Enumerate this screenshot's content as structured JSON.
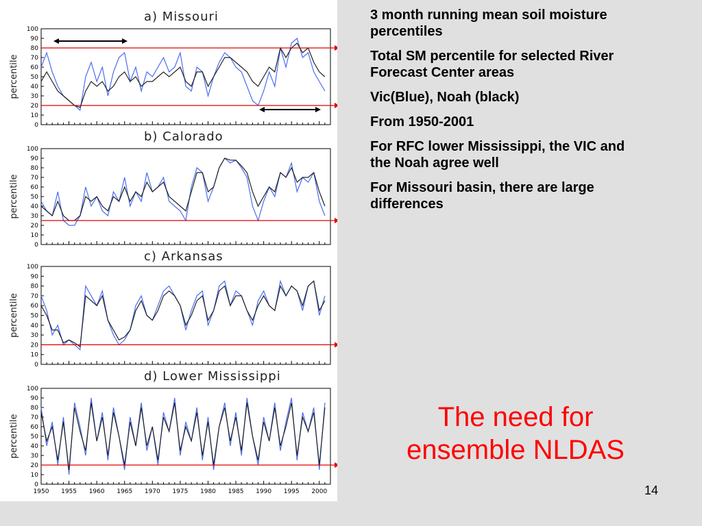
{
  "notes": [
    "3 month running mean soil moisture percentiles",
    "Total SM percentile for selected River Forecast Center areas",
    "Vic(Blue), Noah (black)",
    "From 1950-2001",
    "For RFC lower Mississippi, the VIC and the Noah agree well",
    "For Missouri basin, there are large differences"
  ],
  "slogan": "The need for ensemble NLDAS",
  "slide_number": "14",
  "colors": {
    "vic": "#4a6cf0",
    "noah": "#222222",
    "threshold": "#e00000",
    "title_red": "#ff0000"
  },
  "chart_data": [
    {
      "type": "line",
      "title": "a) Missouri",
      "ylabel": "percentile",
      "ylim": [
        0,
        100
      ],
      "xlim": [
        1950,
        2002
      ],
      "yticks": [
        "0",
        "10",
        "20",
        "30",
        "40",
        "50",
        "60",
        "70",
        "80",
        "90",
        "100"
      ],
      "threshold_lines": [
        80,
        20
      ],
      "series": [
        {
          "name": "Vic",
          "x": [
            1950,
            1951,
            1952,
            1953,
            1954,
            1955,
            1956,
            1957,
            1958,
            1959,
            1960,
            1961,
            1962,
            1963,
            1964,
            1965,
            1966,
            1967,
            1968,
            1969,
            1970,
            1971,
            1972,
            1973,
            1974,
            1975,
            1976,
            1977,
            1978,
            1979,
            1980,
            1981,
            1982,
            1983,
            1984,
            1985,
            1986,
            1987,
            1988,
            1989,
            1990,
            1991,
            1992,
            1993,
            1994,
            1995,
            1996,
            1997,
            1998,
            1999,
            2000,
            2001
          ],
          "values": [
            60,
            75,
            55,
            40,
            30,
            25,
            20,
            15,
            50,
            65,
            45,
            60,
            30,
            55,
            70,
            75,
            45,
            60,
            35,
            55,
            50,
            60,
            70,
            55,
            60,
            75,
            40,
            35,
            60,
            55,
            30,
            50,
            65,
            75,
            70,
            60,
            55,
            40,
            25,
            20,
            35,
            55,
            40,
            80,
            60,
            85,
            90,
            70,
            75,
            55,
            45,
            35
          ]
        },
        {
          "name": "Noah",
          "x": [
            1950,
            1951,
            1952,
            1953,
            1954,
            1955,
            1956,
            1957,
            1958,
            1959,
            1960,
            1961,
            1962,
            1963,
            1964,
            1965,
            1966,
            1967,
            1968,
            1969,
            1970,
            1971,
            1972,
            1973,
            1974,
            1975,
            1976,
            1977,
            1978,
            1979,
            1980,
            1981,
            1982,
            1983,
            1984,
            1985,
            1986,
            1987,
            1988,
            1989,
            1990,
            1991,
            1992,
            1993,
            1994,
            1995,
            1996,
            1997,
            1998,
            1999,
            2000,
            2001
          ],
          "values": [
            45,
            55,
            45,
            35,
            30,
            25,
            20,
            18,
            35,
            45,
            40,
            45,
            35,
            40,
            50,
            55,
            45,
            50,
            40,
            45,
            45,
            50,
            55,
            50,
            55,
            60,
            45,
            40,
            55,
            55,
            40,
            50,
            60,
            70,
            70,
            65,
            60,
            55,
            45,
            40,
            50,
            60,
            55,
            80,
            70,
            80,
            85,
            75,
            80,
            65,
            55,
            50
          ]
        }
      ]
    },
    {
      "type": "line",
      "title": "b) Calorado",
      "ylabel": "percentile",
      "ylim": [
        0,
        100
      ],
      "xlim": [
        1950,
        2002
      ],
      "yticks": [
        "0",
        "10",
        "20",
        "30",
        "40",
        "50",
        "60",
        "70",
        "80",
        "90",
        "100"
      ],
      "threshold_lines": [
        25
      ],
      "series": [
        {
          "name": "Vic",
          "x": [
            1950,
            1951,
            1952,
            1953,
            1954,
            1955,
            1956,
            1957,
            1958,
            1959,
            1960,
            1961,
            1962,
            1963,
            1964,
            1965,
            1966,
            1967,
            1968,
            1969,
            1970,
            1971,
            1972,
            1973,
            1974,
            1975,
            1976,
            1977,
            1978,
            1979,
            1980,
            1981,
            1982,
            1983,
            1984,
            1985,
            1986,
            1987,
            1988,
            1989,
            1990,
            1991,
            1992,
            1993,
            1994,
            1995,
            1996,
            1997,
            1998,
            1999,
            2000,
            2001
          ],
          "values": [
            45,
            35,
            30,
            55,
            25,
            20,
            20,
            30,
            60,
            40,
            50,
            35,
            30,
            55,
            45,
            70,
            40,
            55,
            45,
            75,
            55,
            60,
            70,
            45,
            40,
            35,
            25,
            60,
            80,
            75,
            45,
            60,
            80,
            90,
            85,
            88,
            80,
            70,
            40,
            25,
            45,
            60,
            50,
            75,
            70,
            85,
            55,
            70,
            65,
            75,
            45,
            30
          ]
        },
        {
          "name": "Noah",
          "x": [
            1950,
            1951,
            1952,
            1953,
            1954,
            1955,
            1956,
            1957,
            1958,
            1959,
            1960,
            1961,
            1962,
            1963,
            1964,
            1965,
            1966,
            1967,
            1968,
            1969,
            1970,
            1971,
            1972,
            1973,
            1974,
            1975,
            1976,
            1977,
            1978,
            1979,
            1980,
            1981,
            1982,
            1983,
            1984,
            1985,
            1986,
            1987,
            1988,
            1989,
            1990,
            1991,
            1992,
            1993,
            1994,
            1995,
            1996,
            1997,
            1998,
            1999,
            2000,
            2001
          ],
          "values": [
            40,
            35,
            30,
            45,
            30,
            25,
            25,
            30,
            50,
            45,
            50,
            40,
            35,
            50,
            45,
            60,
            45,
            55,
            50,
            65,
            55,
            60,
            65,
            50,
            45,
            40,
            35,
            55,
            75,
            75,
            55,
            60,
            80,
            90,
            88,
            88,
            82,
            75,
            55,
            40,
            50,
            60,
            55,
            75,
            70,
            80,
            65,
            70,
            70,
            75,
            55,
            40
          ]
        }
      ]
    },
    {
      "type": "line",
      "title": "c) Arkansas",
      "ylabel": "percentile",
      "ylim": [
        0,
        100
      ],
      "xlim": [
        1950,
        2002
      ],
      "yticks": [
        "0",
        "10",
        "20",
        "30",
        "40",
        "50",
        "60",
        "70",
        "80",
        "90",
        "100"
      ],
      "threshold_lines": [
        20
      ],
      "series": [
        {
          "name": "Vic",
          "x": [
            1950,
            1951,
            1952,
            1953,
            1954,
            1955,
            1956,
            1957,
            1958,
            1959,
            1960,
            1961,
            1962,
            1963,
            1964,
            1965,
            1966,
            1967,
            1968,
            1969,
            1970,
            1971,
            1972,
            1973,
            1974,
            1975,
            1976,
            1977,
            1978,
            1979,
            1980,
            1981,
            1982,
            1983,
            1984,
            1985,
            1986,
            1987,
            1988,
            1989,
            1990,
            1991,
            1992,
            1993,
            1994,
            1995,
            1996,
            1997,
            1998,
            1999,
            2000,
            2001
          ],
          "values": [
            70,
            55,
            30,
            40,
            20,
            25,
            20,
            15,
            80,
            70,
            60,
            75,
            45,
            30,
            20,
            25,
            35,
            60,
            70,
            50,
            45,
            60,
            75,
            80,
            70,
            60,
            35,
            55,
            70,
            75,
            40,
            55,
            80,
            85,
            60,
            75,
            70,
            55,
            40,
            65,
            75,
            60,
            55,
            85,
            70,
            80,
            75,
            55,
            80,
            85,
            50,
            70
          ]
        },
        {
          "name": "Noah",
          "x": [
            1950,
            1951,
            1952,
            1953,
            1954,
            1955,
            1956,
            1957,
            1958,
            1959,
            1960,
            1961,
            1962,
            1963,
            1964,
            1965,
            1966,
            1967,
            1968,
            1969,
            1970,
            1971,
            1972,
            1973,
            1974,
            1975,
            1976,
            1977,
            1978,
            1979,
            1980,
            1981,
            1982,
            1983,
            1984,
            1985,
            1986,
            1987,
            1988,
            1989,
            1990,
            1991,
            1992,
            1993,
            1994,
            1995,
            1996,
            1997,
            1998,
            1999,
            2000,
            2001
          ],
          "values": [
            60,
            50,
            35,
            35,
            22,
            25,
            22,
            18,
            70,
            65,
            60,
            70,
            45,
            35,
            25,
            28,
            35,
            55,
            65,
            50,
            45,
            55,
            70,
            75,
            70,
            60,
            40,
            50,
            65,
            70,
            45,
            55,
            75,
            80,
            60,
            70,
            70,
            55,
            45,
            60,
            70,
            60,
            55,
            80,
            70,
            80,
            75,
            60,
            80,
            85,
            55,
            65
          ]
        }
      ]
    },
    {
      "type": "line",
      "title": "d) Lower Mississippi",
      "ylabel": "percentile",
      "ylim": [
        0,
        100
      ],
      "xlim": [
        1950,
        2002
      ],
      "yticks": [
        "0",
        "10",
        "20",
        "30",
        "40",
        "50",
        "60",
        "70",
        "80",
        "90",
        "100"
      ],
      "xticks": [
        "1950",
        "1955",
        "1960",
        "1965",
        "1970",
        "1975",
        "1980",
        "1985",
        "1990",
        "1995",
        "2000"
      ],
      "threshold_lines": [
        20
      ],
      "series": [
        {
          "name": "Vic",
          "x": [
            1950,
            1951,
            1952,
            1953,
            1954,
            1955,
            1956,
            1957,
            1958,
            1959,
            1960,
            1961,
            1962,
            1963,
            1964,
            1965,
            1966,
            1967,
            1968,
            1969,
            1970,
            1971,
            1972,
            1973,
            1974,
            1975,
            1976,
            1977,
            1978,
            1979,
            1980,
            1981,
            1982,
            1983,
            1984,
            1985,
            1986,
            1987,
            1988,
            1989,
            1990,
            1991,
            1992,
            1993,
            1994,
            1995,
            1996,
            1997,
            1998,
            1999,
            2000,
            2001
          ],
          "values": [
            80,
            40,
            65,
            20,
            70,
            10,
            85,
            60,
            30,
            90,
            45,
            75,
            25,
            80,
            50,
            15,
            70,
            40,
            85,
            35,
            60,
            20,
            75,
            55,
            90,
            30,
            65,
            45,
            80,
            25,
            70,
            15,
            60,
            85,
            40,
            75,
            30,
            90,
            50,
            20,
            70,
            45,
            85,
            35,
            65,
            90,
            25,
            75,
            55,
            80,
            15,
            85
          ]
        },
        {
          "name": "Noah",
          "x": [
            1950,
            1951,
            1952,
            1953,
            1954,
            1955,
            1956,
            1957,
            1958,
            1959,
            1960,
            1961,
            1962,
            1963,
            1964,
            1965,
            1966,
            1967,
            1968,
            1969,
            1970,
            1971,
            1972,
            1973,
            1974,
            1975,
            1976,
            1977,
            1978,
            1979,
            1980,
            1981,
            1982,
            1983,
            1984,
            1985,
            1986,
            1987,
            1988,
            1989,
            1990,
            1991,
            1992,
            1993,
            1994,
            1995,
            1996,
            1997,
            1998,
            1999,
            2000,
            2001
          ],
          "values": [
            75,
            45,
            60,
            25,
            65,
            15,
            80,
            55,
            35,
            85,
            45,
            70,
            30,
            75,
            50,
            20,
            65,
            40,
            80,
            40,
            60,
            25,
            70,
            55,
            85,
            35,
            60,
            45,
            75,
            30,
            65,
            20,
            60,
            80,
            45,
            70,
            35,
            85,
            50,
            25,
            65,
            45,
            80,
            40,
            60,
            85,
            30,
            70,
            55,
            75,
            20,
            80
          ]
        }
      ]
    }
  ]
}
